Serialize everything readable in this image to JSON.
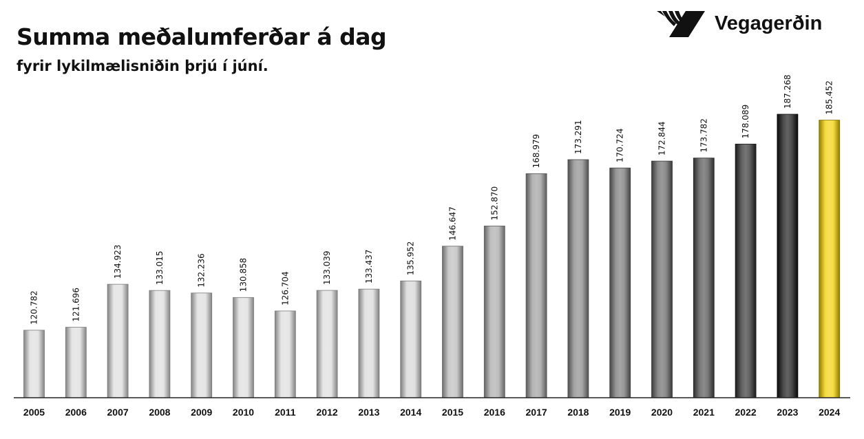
{
  "header": {
    "title": "Summa meðalumferðar á dag",
    "subtitle": "fyrir lykilmælisniðin þrjú í júní.",
    "logo_text": "Vegagerðin"
  },
  "chart_data": {
    "type": "bar",
    "title": "Summa meðalumferðar á dag",
    "subtitle": "fyrir lykilmælisniðin þrjú í júní.",
    "xlabel": "",
    "ylabel": "",
    "ylim": [
      100000,
      195000
    ],
    "grid": false,
    "categories": [
      "2005",
      "2006",
      "2007",
      "2008",
      "2009",
      "2010",
      "2011",
      "2012",
      "2013",
      "2014",
      "2015",
      "2016",
      "2017",
      "2018",
      "2019",
      "2020",
      "2021",
      "2022",
      "2023",
      "2024"
    ],
    "values": [
      120782,
      121696,
      134923,
      133015,
      132236,
      130858,
      126704,
      133039,
      133437,
      135952,
      146647,
      152870,
      168979,
      173291,
      170724,
      172844,
      173782,
      178089,
      187268,
      185452
    ],
    "data_labels": [
      "120.782",
      "121.696",
      "134.923",
      "133.015",
      "132.236",
      "130.858",
      "126.704",
      "133.039",
      "133.437",
      "135.952",
      "146.647",
      "152.870",
      "168.979",
      "173.291",
      "170.724",
      "172.844",
      "173.782",
      "178.089",
      "187.268",
      "185.452"
    ],
    "colors": [
      "#dcdcdc",
      "#dcdcdc",
      "#dcdcdc",
      "#dcdcdc",
      "#dcdcdc",
      "#dcdcdc",
      "#dcdcdc",
      "#dcdcdc",
      "#d8d8d8",
      "#d4d4d4",
      "#b8b8b8",
      "#a8a8a8",
      "#999999",
      "#858585",
      "#747474",
      "#636363",
      "#4c4c4c",
      "#2c2c2c",
      "#111111",
      "#f2cf00"
    ]
  }
}
